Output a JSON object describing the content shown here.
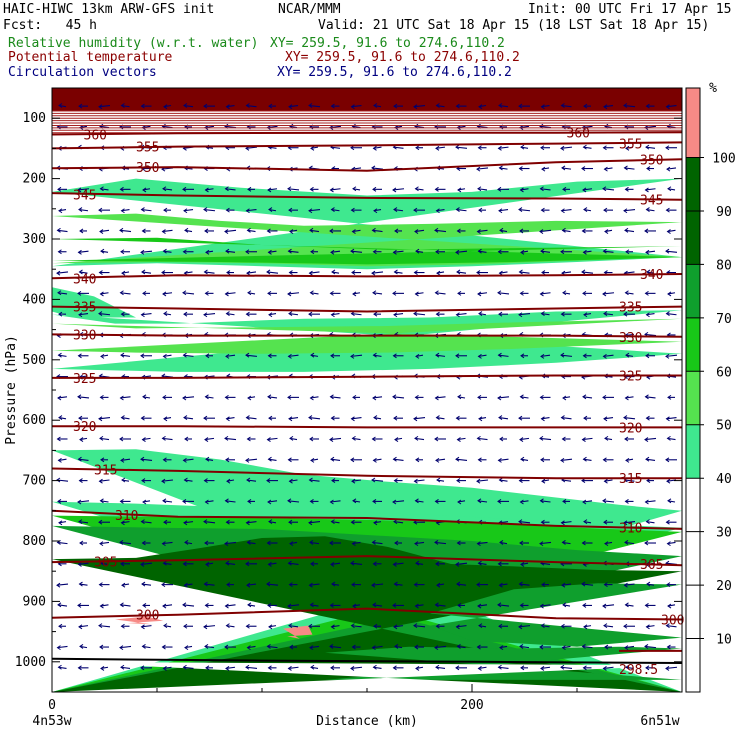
{
  "header": {
    "line1_left": "HAIC-HIWC 13km ARW-GFS init",
    "line1_mid": "NCAR/MMM",
    "line1_right": "Init: 00 UTC Fri 17 Apr 15",
    "line2_left": "Fcst:   45 h",
    "line2_right": "Valid: 21 UTC Sat 18 Apr 15 (18 LST Sat 18 Apr 15)",
    "field1_name": "Relative humidity (w.r.t. water)",
    "field1_xy": "XY= 259.5, 91.6 to 274.6,110.2",
    "field2_name": "Potential temperature",
    "field2_xy": "XY= 259.5, 91.6 to 274.6,110.2",
    "field3_name": "Circulation vectors",
    "field3_xy": "XY= 259.5, 91.6 to 274.6,110.2"
  },
  "colors": {
    "rh_40_50": "#3fe88f",
    "rh_50_60": "#3fe88f",
    "rh_60_70": "#55e34f",
    "rh_70_80": "#18c818",
    "rh_80_90": "#0f9f2d",
    "rh_90_100": "#006400",
    "rh_100_plus": "#f78a86",
    "top_band": "#7a0000",
    "isentrope": "#800000",
    "vector": "#00006e"
  },
  "chart_data": {
    "type": "area",
    "title": "",
    "xlabel": "Distance (km)",
    "ylabel": "Pressure (hPa)",
    "xlim": [
      0,
      300
    ],
    "ylim": [
      1050,
      50
    ],
    "x_ticks": [
      "0",
      "200"
    ],
    "x_tick_values": [
      0,
      200
    ],
    "y_ticks": [
      "100",
      "200",
      "300",
      "400",
      "500",
      "600",
      "700",
      "800",
      "900",
      "1000"
    ],
    "y_tick_values": [
      100,
      200,
      300,
      400,
      500,
      600,
      700,
      800,
      900,
      1000
    ],
    "x_end_labels": {
      "left": "4n53w",
      "right": "6n51w"
    },
    "colorbar": {
      "unit": "%",
      "levels": [
        10,
        20,
        30,
        40,
        50,
        60,
        70,
        80,
        90,
        100
      ],
      "labels": [
        "10",
        "20",
        "30",
        "40",
        "50",
        "60",
        "70",
        "80",
        "90",
        "100"
      ]
    },
    "isentropes": [
      {
        "label": "360",
        "points": [
          [
            0,
            127
          ],
          [
            60,
            125
          ],
          [
            150,
            124
          ],
          [
            240,
            124
          ],
          [
            300,
            123
          ]
        ],
        "label_at": [
          [
            15,
            127
          ],
          [
            245,
            124
          ]
        ]
      },
      {
        "label": "355",
        "points": [
          [
            0,
            150
          ],
          [
            60,
            147
          ],
          [
            150,
            145
          ],
          [
            240,
            142
          ],
          [
            300,
            140
          ]
        ],
        "label_at": [
          [
            40,
            147
          ],
          [
            270,
            142
          ]
        ]
      },
      {
        "label": "350",
        "points": [
          [
            0,
            183
          ],
          [
            60,
            181
          ],
          [
            150,
            187
          ],
          [
            240,
            173
          ],
          [
            300,
            168
          ]
        ],
        "label_at": [
          [
            40,
            181
          ],
          [
            280,
            168
          ]
        ]
      },
      {
        "label": "345",
        "points": [
          [
            0,
            224
          ],
          [
            60,
            228
          ],
          [
            150,
            232
          ],
          [
            240,
            233
          ],
          [
            300,
            235
          ]
        ],
        "label_at": [
          [
            10,
            226
          ],
          [
            280,
            235
          ]
        ]
      },
      {
        "label": "340",
        "points": [
          [
            0,
            365
          ],
          [
            60,
            360
          ],
          [
            150,
            362
          ],
          [
            240,
            360
          ],
          [
            300,
            358
          ]
        ],
        "label_at": [
          [
            10,
            365
          ],
          [
            280,
            358
          ]
        ]
      },
      {
        "label": "335",
        "points": [
          [
            0,
            412
          ],
          [
            60,
            415
          ],
          [
            150,
            420
          ],
          [
            240,
            415
          ],
          [
            300,
            412
          ]
        ],
        "label_at": [
          [
            10,
            412
          ],
          [
            270,
            412
          ]
        ]
      },
      {
        "label": "330",
        "points": [
          [
            0,
            458
          ],
          [
            60,
            460
          ],
          [
            150,
            460
          ],
          [
            240,
            460
          ],
          [
            300,
            462
          ]
        ],
        "label_at": [
          [
            10,
            458
          ],
          [
            270,
            462
          ]
        ]
      },
      {
        "label": "325",
        "points": [
          [
            0,
            530
          ],
          [
            60,
            530
          ],
          [
            150,
            528
          ],
          [
            240,
            526
          ],
          [
            300,
            526
          ]
        ],
        "label_at": [
          [
            10,
            530
          ],
          [
            270,
            526
          ]
        ]
      },
      {
        "label": "320",
        "points": [
          [
            0,
            610
          ],
          [
            60,
            610
          ],
          [
            150,
            612
          ],
          [
            240,
            612
          ],
          [
            300,
            612
          ]
        ],
        "label_at": [
          [
            10,
            610
          ],
          [
            270,
            612
          ]
        ]
      },
      {
        "label": "315",
        "points": [
          [
            0,
            680
          ],
          [
            60,
            684
          ],
          [
            150,
            692
          ],
          [
            240,
            696
          ],
          [
            300,
            696
          ]
        ],
        "label_at": [
          [
            20,
            682
          ],
          [
            270,
            696
          ]
        ]
      },
      {
        "label": "310",
        "points": [
          [
            0,
            750
          ],
          [
            60,
            760
          ],
          [
            150,
            762
          ],
          [
            240,
            775
          ],
          [
            300,
            780
          ]
        ],
        "label_at": [
          [
            30,
            757
          ],
          [
            270,
            778
          ]
        ]
      },
      {
        "label": "305",
        "points": [
          [
            0,
            835
          ],
          [
            60,
            832
          ],
          [
            150,
            825
          ],
          [
            240,
            835
          ],
          [
            300,
            840
          ]
        ],
        "label_at": [
          [
            20,
            834
          ],
          [
            280,
            838
          ]
        ]
      },
      {
        "label": "300",
        "points": [
          [
            0,
            927
          ],
          [
            60,
            922
          ],
          [
            150,
            912
          ],
          [
            240,
            928
          ],
          [
            300,
            930
          ]
        ],
        "label_at": [
          [
            40,
            922
          ],
          [
            290,
            930
          ]
        ]
      },
      {
        "label": "298.5",
        "points": [
          [
            270,
            982
          ],
          [
            300,
            982
          ]
        ],
        "label_at": [
          [
            270,
            1012
          ]
        ]
      }
    ],
    "rh_regions": [
      {
        "range": "90-100",
        "description": "lower troposphere below ~850 hPa",
        "approx_layer_hPa": [
          850,
          1000
        ]
      },
      {
        "range": "80-90",
        "description": "layer ~780-850 hPa and near surface",
        "approx_layer_hPa": [
          780,
          870
        ]
      },
      {
        "range": "50-80",
        "description": "mid-level moist layers ~220-350 hPa and ~420-520 hPa",
        "approx_layer_hPa": [
          220,
          520
        ]
      },
      {
        "range": ">100",
        "description": "small patches near 920-950 hPa",
        "approx_layer_hPa": [
          920,
          950
        ]
      }
    ],
    "vectors": {
      "dominant_direction": "westward",
      "approx_columns": 30,
      "approx_rows": 28
    }
  }
}
